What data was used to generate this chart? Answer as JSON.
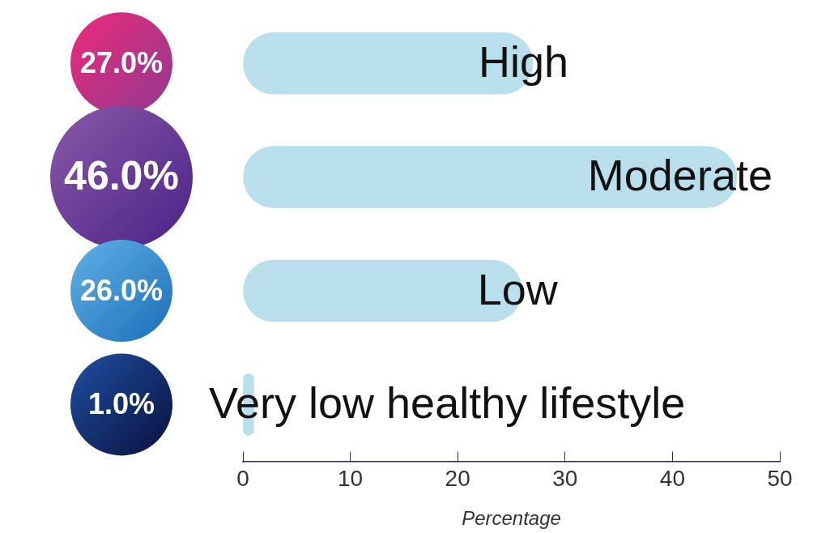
{
  "chart_data": {
    "type": "bar",
    "orientation": "horizontal",
    "xlabel": "Percentage",
    "categories": [
      "High",
      "Moderate",
      "Low",
      "Very low healthy lifestyle"
    ],
    "values": [
      27,
      46,
      26,
      1
    ],
    "value_labels": [
      "27.0%",
      "46.0%",
      "26.0%",
      "1.0%"
    ],
    "color": "#b8dfeb",
    "xlim": [
      0,
      50
    ],
    "xticks": [
      0,
      10,
      20,
      30,
      40,
      50
    ],
    "grid": false,
    "legend": false
  }
}
